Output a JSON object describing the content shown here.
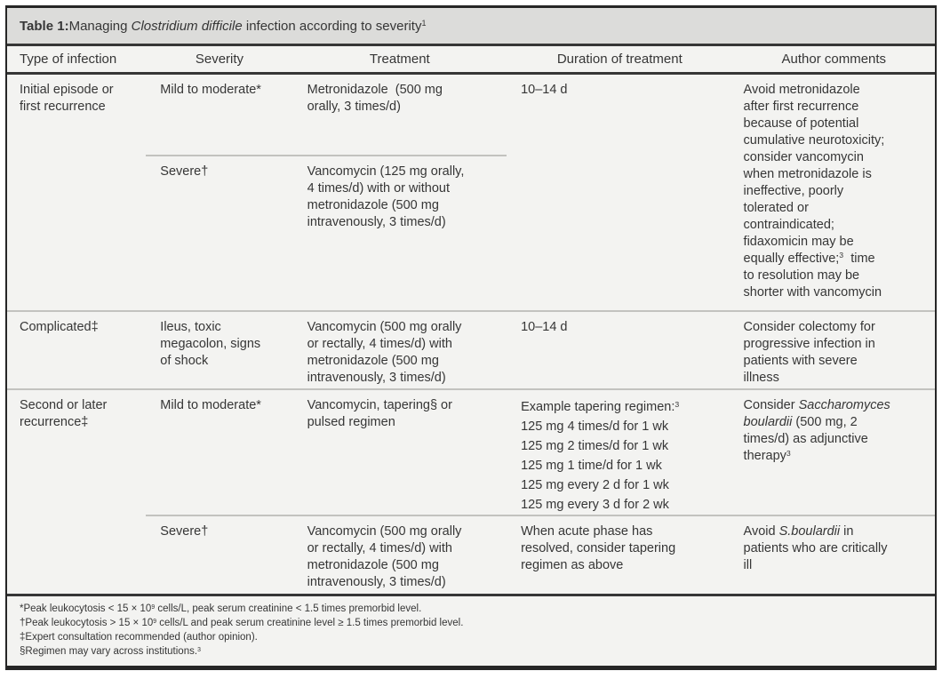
{
  "colors": {
    "title_bar_bg": "#dcdcda",
    "panel_bg": "#f3f3f1",
    "border_dark": "#262626",
    "divider_light": "#c2c2bf",
    "text": "#363636"
  },
  "table": {
    "title_prefix": "Table 1:",
    "title_rich": [
      {
        "t": " Managing "
      },
      {
        "t": "Clostridium difficile",
        "i": true
      },
      {
        "t": " infection according to severity"
      },
      {
        "t": "1",
        "sup": true
      }
    ],
    "headers": [
      "Type of infection",
      "Severity",
      "Treatment",
      "Duration of treatment",
      "Author comments"
    ],
    "sections": [
      {
        "type": [
          {
            "t": "Initial episode or"
          },
          {
            "br": true
          },
          {
            "t": "first recurrence"
          }
        ],
        "rows": [
          {
            "severity": "Mild to moderate*",
            "treatment": [
              {
                "t": "Metronidazole  (500 mg"
              },
              {
                "br": true
              },
              {
                "t": "orally, 3 times/d)"
              }
            ],
            "duration": "10–14 d",
            "comments": [
              {
                "t": "Avoid metronidazole"
              },
              {
                "br": true
              },
              {
                "t": "after first recurrence"
              },
              {
                "br": true
              },
              {
                "t": "because of potential"
              },
              {
                "br": true
              },
              {
                "t": "cumulative neurotoxicity;"
              },
              {
                "br": true
              },
              {
                "t": "consider vancomycin"
              },
              {
                "br": true
              },
              {
                "t": "when metronidazole is"
              },
              {
                "br": true
              },
              {
                "t": "ineffective, poorly"
              },
              {
                "br": true
              },
              {
                "t": "tolerated or"
              },
              {
                "br": true
              },
              {
                "t": "contraindicated;"
              },
              {
                "br": true
              },
              {
                "t": "fidaxomicin may be"
              },
              {
                "br": true
              },
              {
                "t": "equally effective;"
              },
              {
                "t": "3",
                "sup": true
              },
              {
                "t": "  time"
              },
              {
                "br": true
              },
              {
                "t": "to resolution may be"
              },
              {
                "br": true
              },
              {
                "t": "shorter with vancomycin"
              }
            ]
          },
          {
            "severity": "Severe†",
            "treatment": [
              {
                "t": "Vancomycin (125 mg orally,"
              },
              {
                "br": true
              },
              {
                "t": "4 times/d) with or without"
              },
              {
                "br": true
              },
              {
                "t": "metronidazole (500 mg"
              },
              {
                "br": true
              },
              {
                "t": "intravenously, 3 times/d)"
              }
            ]
          }
        ]
      },
      {
        "type": [
          {
            "t": "Complicated‡"
          }
        ],
        "rows": [
          {
            "severity_rich": [
              {
                "t": "Ileus, toxic"
              },
              {
                "br": true
              },
              {
                "t": "megacolon, signs"
              },
              {
                "br": true
              },
              {
                "t": "of shock"
              }
            ],
            "treatment": [
              {
                "t": "Vancomycin (500 mg orally"
              },
              {
                "br": true
              },
              {
                "t": "or rectally, 4 times/d) with"
              },
              {
                "br": true
              },
              {
                "t": "metronidazole (500 mg"
              },
              {
                "br": true
              },
              {
                "t": "intravenously, 3 times/d)"
              }
            ],
            "duration": "10–14 d",
            "comments": [
              {
                "t": "Consider colectomy for"
              },
              {
                "br": true
              },
              {
                "t": "progressive infection in"
              },
              {
                "br": true
              },
              {
                "t": "patients with severe"
              },
              {
                "br": true
              },
              {
                "t": "illness"
              }
            ]
          }
        ]
      },
      {
        "type": [
          {
            "t": "Second or later"
          },
          {
            "br": true
          },
          {
            "t": "recurrence‡"
          }
        ],
        "rows": [
          {
            "severity": "Mild to moderate*",
            "treatment": [
              {
                "t": "Vancomycin, tapering§ or"
              },
              {
                "br": true
              },
              {
                "t": "pulsed regimen"
              }
            ],
            "duration_rich": [
              {
                "t": "Example tapering regimen:"
              },
              {
                "t": "3",
                "sup": true
              },
              {
                "br": true
              },
              {
                "t": "125 mg 4 times/d for 1 wk"
              },
              {
                "br": true
              },
              {
                "t": "125 mg 2 times/d for 1 wk"
              },
              {
                "br": true
              },
              {
                "t": "125 mg 1 time/d for 1 wk"
              },
              {
                "br": true
              },
              {
                "t": "125 mg every 2 d for 1 wk"
              },
              {
                "br": true
              },
              {
                "t": "125 mg every 3 d for 2 wk"
              }
            ],
            "comments": [
              {
                "t": "Consider "
              },
              {
                "t": "Saccharomyces",
                "i": true
              },
              {
                "br": true
              },
              {
                "t": "boulardii",
                "i": true
              },
              {
                "t": " (500 mg, 2"
              },
              {
                "br": true
              },
              {
                "t": "times/d) as adjunctive"
              },
              {
                "br": true
              },
              {
                "t": "therapy"
              },
              {
                "t": "3",
                "sup": true
              }
            ]
          },
          {
            "severity": "Severe†",
            "treatment": [
              {
                "t": "Vancomycin (500 mg orally"
              },
              {
                "br": true
              },
              {
                "t": "or rectally, 4 times/d) with"
              },
              {
                "br": true
              },
              {
                "t": "metronidazole (500 mg"
              },
              {
                "br": true
              },
              {
                "t": "intravenously, 3 times/d)"
              }
            ],
            "duration_rich": [
              {
                "t": "When acute phase has"
              },
              {
                "br": true
              },
              {
                "t": "resolved, consider tapering"
              },
              {
                "br": true
              },
              {
                "t": "regimen as above"
              }
            ],
            "comments": [
              {
                "t": "Avoid "
              },
              {
                "t": "S.boulardii",
                "i": true
              },
              {
                "t": " in"
              },
              {
                "br": true
              },
              {
                "t": "patients who are critically"
              },
              {
                "br": true
              },
              {
                "t": "ill"
              }
            ]
          }
        ]
      }
    ],
    "footnotes": [
      [
        {
          "t": "*Peak leukocytosis < 15 × 10"
        },
        {
          "t": "9",
          "sup": true
        },
        {
          "t": " cells/L, peak serum creatinine < 1.5 times premorbid level."
        }
      ],
      [
        {
          "t": "†Peak leukocytosis > 15 × 10"
        },
        {
          "t": "9",
          "sup": true
        },
        {
          "t": " cells/L and peak serum creatinine level ≥ 1.5 times premorbid level."
        }
      ],
      [
        {
          "t": "‡Expert consultation recommended (author opinion)."
        }
      ],
      [
        {
          "t": "§Regimen may vary across institutions."
        },
        {
          "t": "3",
          "sup": true
        }
      ]
    ]
  }
}
